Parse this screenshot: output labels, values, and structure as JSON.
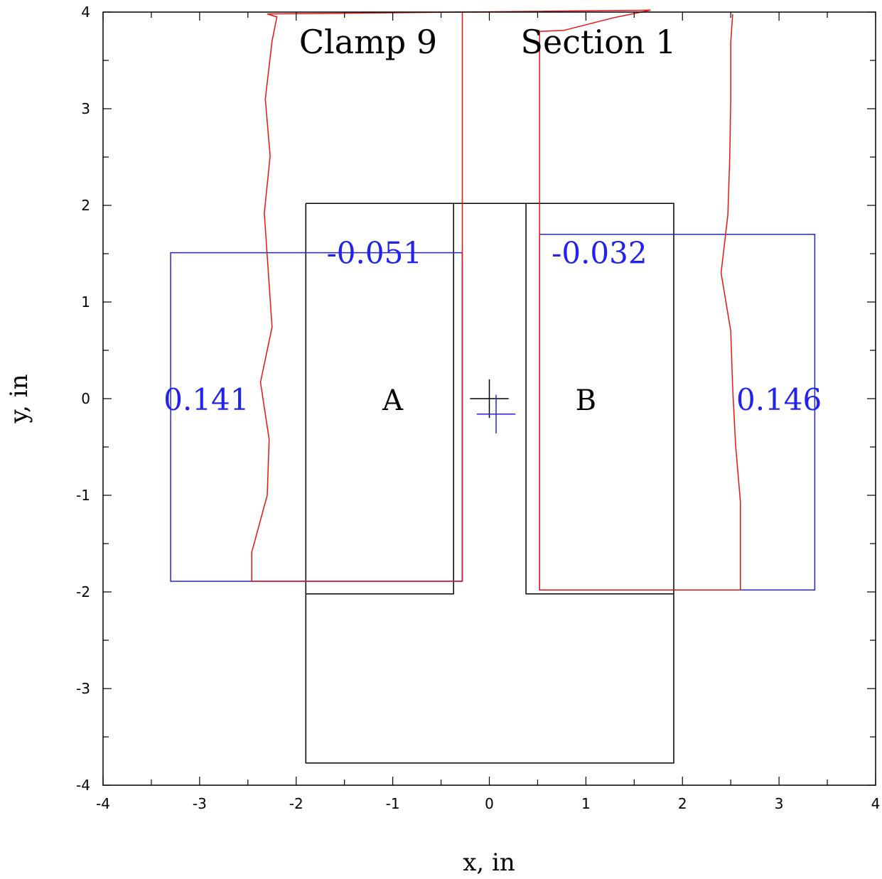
{
  "title": {
    "left": "Clamp 9",
    "right": "Section 1"
  },
  "axes": {
    "xlabel": "x, in",
    "ylabel": "y, in",
    "xlim": [
      -4,
      4
    ],
    "ylim": [
      -4,
      4
    ],
    "x_ticks": [
      "-4",
      "-3",
      "-2",
      "-1",
      "0",
      "1",
      "2",
      "3",
      "4"
    ],
    "y_ticks": [
      "-4",
      "-3",
      "-2",
      "-1",
      "0",
      "1",
      "2",
      "3",
      "4"
    ]
  },
  "colors": {
    "frame": "#000000",
    "outline": "#000000",
    "blue": "#2222ee",
    "red": "#ee1111"
  },
  "chart_data": {
    "type": "diagram",
    "title": "Clamp 9    Section 1",
    "xlabel": "x, in",
    "ylabel": "y, in",
    "xlim": [
      -4,
      4
    ],
    "ylim": [
      -4,
      4
    ],
    "black_outline": {
      "polyline": [
        [
          -1.9,
          2.02
        ],
        [
          -0.37,
          2.02
        ],
        [
          -0.37,
          -2.02
        ],
        [
          -1.9,
          -2.02
        ],
        [
          -1.9,
          2.02
        ],
        [
          -1.9,
          -3.77
        ],
        [
          1.91,
          -3.77
        ],
        [
          1.91,
          2.02
        ],
        [
          0.38,
          2.02
        ],
        [
          0.38,
          -2.02
        ],
        [
          1.91,
          -2.02
        ]
      ],
      "top_segment": [
        [
          -0.37,
          2.02
        ],
        [
          0.38,
          2.02
        ]
      ]
    },
    "black_cross": {
      "x": 0.0,
      "y": 0.0,
      "half_size": 0.2
    },
    "blue_cross": {
      "x": 0.07,
      "y": -0.16,
      "half_size": 0.2
    },
    "regions": [
      {
        "label": "A",
        "x": -1.0,
        "y": 0.0
      },
      {
        "label": "B",
        "x": 1.0,
        "y": 0.0
      }
    ],
    "blue_boxes": [
      {
        "x0": -3.3,
        "x1": -0.28,
        "y0": -1.89,
        "y1": 1.51
      },
      {
        "x0": 0.52,
        "x1": 3.37,
        "y0": -1.98,
        "y1": 1.7
      }
    ],
    "values": [
      {
        "text": "0.141",
        "x": -2.93,
        "y": 0.0
      },
      {
        "text": "-0.051",
        "x": -1.19,
        "y": 1.52
      },
      {
        "text": "-0.032",
        "x": 1.14,
        "y": 1.52
      },
      {
        "text": "0.146",
        "x": 3.0,
        "y": 0.0
      }
    ],
    "red_lines": [
      {
        "name": "left-outer",
        "points": [
          [
            1.67,
            4.02
          ],
          [
            -2.3,
            3.98
          ],
          [
            -2.2,
            3.95
          ],
          [
            -2.25,
            3.7
          ],
          [
            -2.32,
            3.1
          ],
          [
            -2.27,
            2.51
          ],
          [
            -2.33,
            1.92
          ],
          [
            -2.25,
            0.74
          ],
          [
            -2.37,
            0.17
          ],
          [
            -2.28,
            -0.42
          ],
          [
            -2.3,
            -1.0
          ],
          [
            -2.46,
            -1.59
          ],
          [
            -2.46,
            -1.89
          ],
          [
            -0.28,
            -1.89
          ]
        ]
      },
      {
        "name": "left-inner",
        "points": [
          [
            -0.28,
            -1.89
          ],
          [
            -0.28,
            4.0
          ]
        ]
      },
      {
        "name": "right-inner",
        "points": [
          [
            0.52,
            -1.98
          ],
          [
            0.52,
            3.8
          ],
          [
            0.77,
            3.81
          ],
          [
            1.28,
            3.94
          ],
          [
            1.67,
            4.02
          ]
        ]
      },
      {
        "name": "right-outer",
        "points": [
          [
            0.52,
            -1.98
          ],
          [
            2.6,
            -1.98
          ],
          [
            2.6,
            -1.07
          ],
          [
            2.55,
            -0.48
          ],
          [
            2.52,
            0.11
          ],
          [
            2.5,
            0.7
          ],
          [
            2.4,
            1.3
          ],
          [
            2.47,
            1.9
          ],
          [
            2.49,
            2.5
          ],
          [
            2.5,
            3.1
          ],
          [
            2.5,
            3.69
          ],
          [
            2.52,
            3.98
          ]
        ]
      }
    ]
  }
}
